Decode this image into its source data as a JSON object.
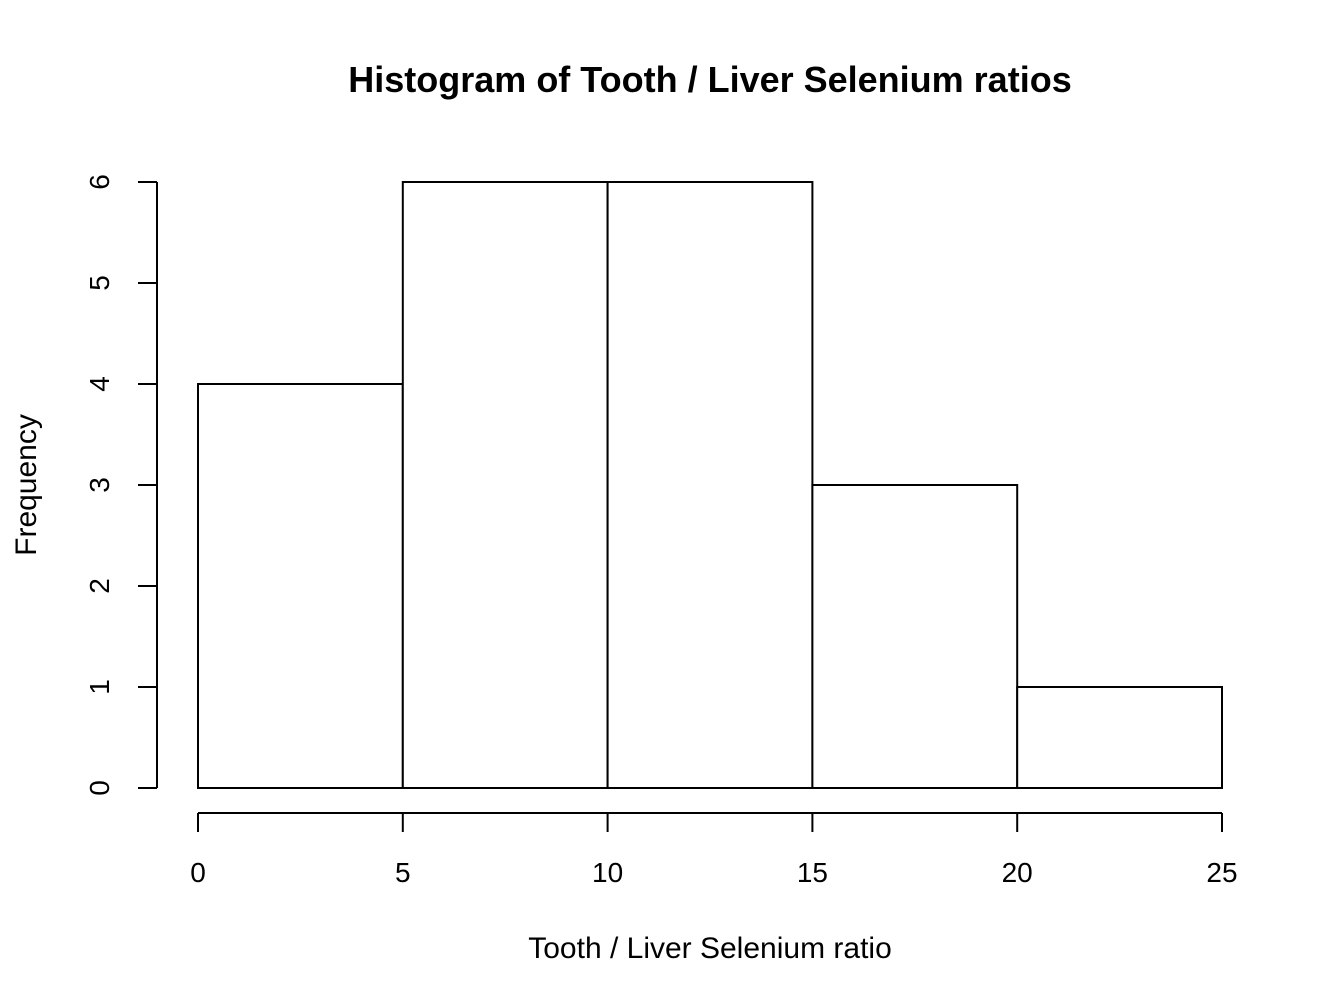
{
  "chart_data": {
    "type": "bar",
    "title": "Histogram of Tooth / Liver Selenium ratios",
    "xlabel": "Tooth / Liver Selenium ratio",
    "ylabel": "Frequency",
    "bins": [
      {
        "from": 0,
        "to": 5,
        "count": 4
      },
      {
        "from": 5,
        "to": 10,
        "count": 6
      },
      {
        "from": 10,
        "to": 15,
        "count": 6
      },
      {
        "from": 15,
        "to": 20,
        "count": 3
      },
      {
        "from": 20,
        "to": 25,
        "count": 1
      }
    ],
    "x_ticks": [
      "0",
      "5",
      "10",
      "15",
      "20",
      "25"
    ],
    "y_ticks": [
      "0",
      "1",
      "2",
      "3",
      "4",
      "5",
      "6"
    ],
    "xlim": [
      0,
      25
    ],
    "ylim": [
      0,
      6
    ],
    "bar_fill": "#ffffff",
    "bar_stroke": "#000000",
    "grid": false
  }
}
